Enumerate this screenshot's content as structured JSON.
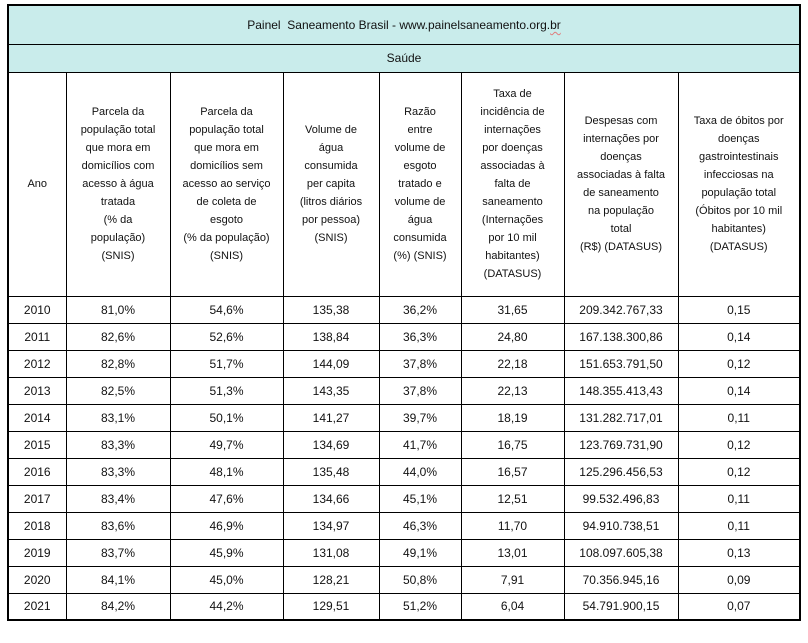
{
  "header": {
    "title_main": "Painel  Saneamento Brasil - www.painelsaneamento.org.",
    "title_spell": "br",
    "subtitle": "Saúde"
  },
  "table": {
    "columns": [
      "Ano",
      "Parcela da\npopulação total\nque mora em\ndomicílios com\nacesso à água\ntratada\n(% da\npopulação)\n(SNIS)",
      "Parcela da\npopulação total\nque mora em\ndomicílios sem\nacesso ao serviço\nde coleta de\nesgoto\n(% da população)\n(SNIS)",
      "Volume de\nágua\nconsumida\nper capita\n(litros diários\npor pessoa)\n(SNIS)",
      "Razão\nentre\nvolume de\nesgoto\ntratado e\nvolume de\nágua\nconsumida\n(%) (SNIS)",
      "Taxa de\nincidência de\ninternações\npor doenças\nassociadas à\nfalta de\nsaneamento\n(Internações\npor 10 mil\nhabitantes)\n(DATASUS)",
      "Despesas com\ninternações por\ndoenças\nassociadas à falta\nde saneamento\nna população\ntotal\n(R$) (DATASUS)",
      "Taxa de óbitos por\ndoenças\ngastrointestinais\ninfecciosas na\npopulação total\n(Óbitos por 10 mil\nhabitantes)\n(DATASUS)"
    ],
    "rows": [
      [
        "2010",
        "81,0%",
        "54,6%",
        "135,38",
        "36,2%",
        "31,65",
        "209.342.767,33",
        "0,15"
      ],
      [
        "2011",
        "82,6%",
        "52,6%",
        "138,84",
        "36,3%",
        "24,80",
        "167.138.300,86",
        "0,14"
      ],
      [
        "2012",
        "82,8%",
        "51,7%",
        "144,09",
        "37,8%",
        "22,18",
        "151.653.791,50",
        "0,12"
      ],
      [
        "2013",
        "82,5%",
        "51,3%",
        "143,35",
        "37,8%",
        "22,13",
        "148.355.413,43",
        "0,14"
      ],
      [
        "2014",
        "83,1%",
        "50,1%",
        "141,27",
        "39,7%",
        "18,19",
        "131.282.717,01",
        "0,11"
      ],
      [
        "2015",
        "83,3%",
        "49,7%",
        "134,69",
        "41,7%",
        "16,75",
        "123.769.731,90",
        "0,12"
      ],
      [
        "2016",
        "83,3%",
        "48,1%",
        "135,48",
        "44,0%",
        "16,57",
        "125.296.456,53",
        "0,12"
      ],
      [
        "2017",
        "83,4%",
        "47,6%",
        "134,66",
        "45,1%",
        "12,51",
        "99.532.496,83",
        "0,11"
      ],
      [
        "2018",
        "83,6%",
        "46,9%",
        "134,97",
        "46,3%",
        "11,70",
        "94.910.738,51",
        "0,11"
      ],
      [
        "2019",
        "83,7%",
        "45,9%",
        "131,08",
        "49,1%",
        "13,01",
        "108.097.605,38",
        "0,13"
      ],
      [
        "2020",
        "84,1%",
        "45,0%",
        "128,21",
        "50,8%",
        "7,91",
        "70.356.945,16",
        "0,09"
      ],
      [
        "2021",
        "84,2%",
        "44,2%",
        "129,51",
        "51,2%",
        "6,04",
        "54.791.900,15",
        "0,07"
      ]
    ]
  },
  "colors": {
    "header_background": "#c9eceb",
    "grid_border": "#000000",
    "spellcheck_underline": "#e07b7b"
  }
}
